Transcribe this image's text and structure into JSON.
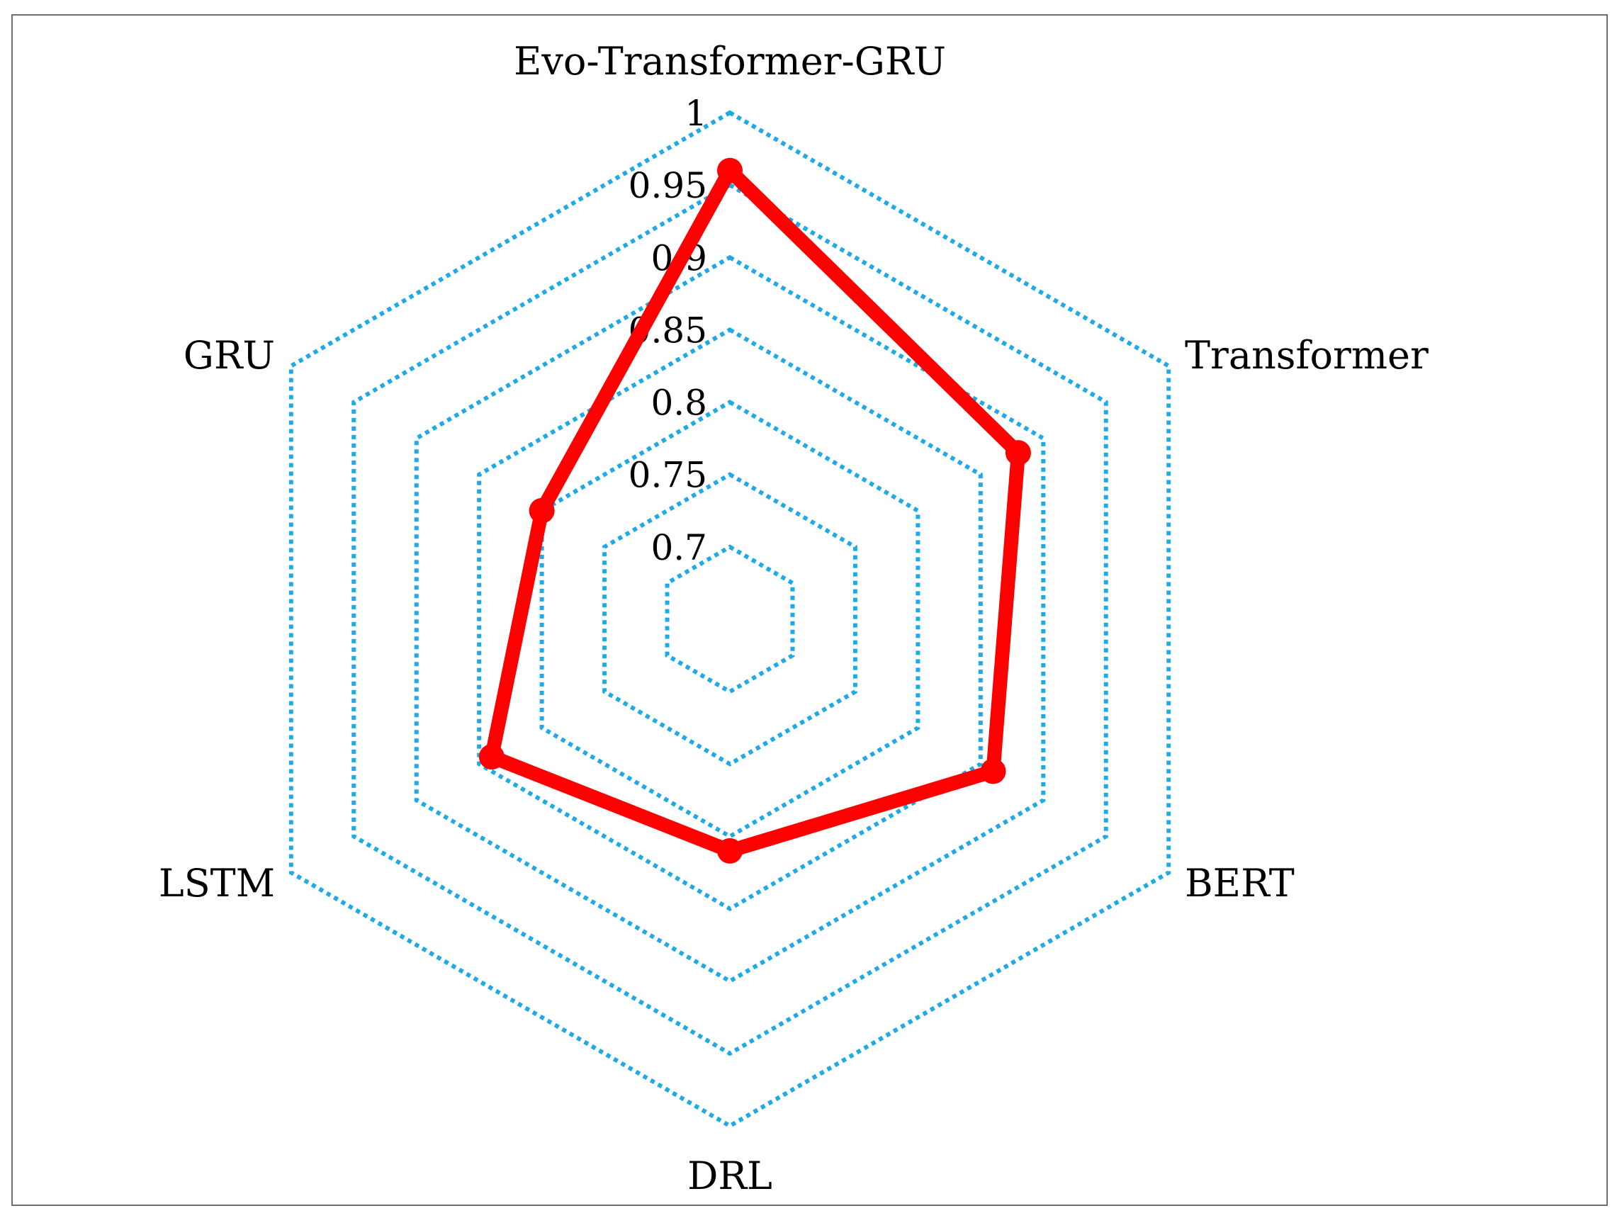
{
  "chart_data": {
    "type": "radar",
    "title": "",
    "categories": [
      "Evo-Transformer-GRU",
      "Transformer",
      "BERT",
      "DRL",
      "LSTM",
      "GRU"
    ],
    "series": [
      {
        "values": [
          0.96,
          0.88,
          0.86,
          0.81,
          0.84,
          0.8
        ],
        "color": "#ff0000"
      }
    ],
    "rlim": [
      0.65,
      1.0
    ],
    "ticks": [
      0.7,
      0.75,
      0.8,
      0.85,
      0.9,
      0.95,
      1
    ],
    "tick_labels": [
      "0.7",
      "0.75",
      "0.8",
      "0.85",
      "0.9",
      "0.95",
      "1"
    ],
    "grid": true,
    "grid_color": "#1eaae6",
    "grid_style": "dotted",
    "legend": "none"
  }
}
